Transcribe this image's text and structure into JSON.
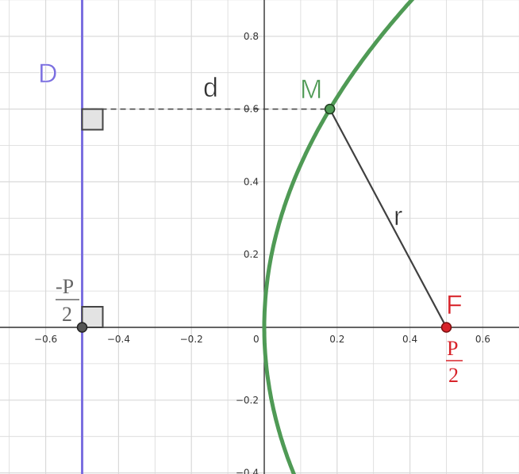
{
  "x_ticks": [
    "−0.6",
    "−0.4",
    "−0.2",
    "0",
    "0.2",
    "0.4",
    "0.6"
  ],
  "y_ticks": [
    "0.8",
    "0.6",
    "0.4",
    "0.2",
    "−0.2",
    "−0.4"
  ],
  "labels": {
    "directrix": "D",
    "distance": "d",
    "point": "M",
    "radius": "r",
    "focus": "F",
    "left_num": "-P",
    "left_den": "2",
    "right_num": "P",
    "right_den": "2"
  },
  "geometry_data": {
    "p": 1,
    "directrix_x": -0.5,
    "focus": [
      0.5,
      0
    ],
    "point_M": [
      0.18,
      0.6
    ],
    "x_range": [
      -0.72,
      0.7
    ],
    "y_range": [
      -0.4,
      0.9
    ]
  },
  "colors": {
    "directrix": "#7b6fe0",
    "parabola": "#4f9a55",
    "focus": "#d8232a",
    "point": "#4f9a55",
    "segments": "#404040",
    "grid": "#d9d9d9"
  }
}
